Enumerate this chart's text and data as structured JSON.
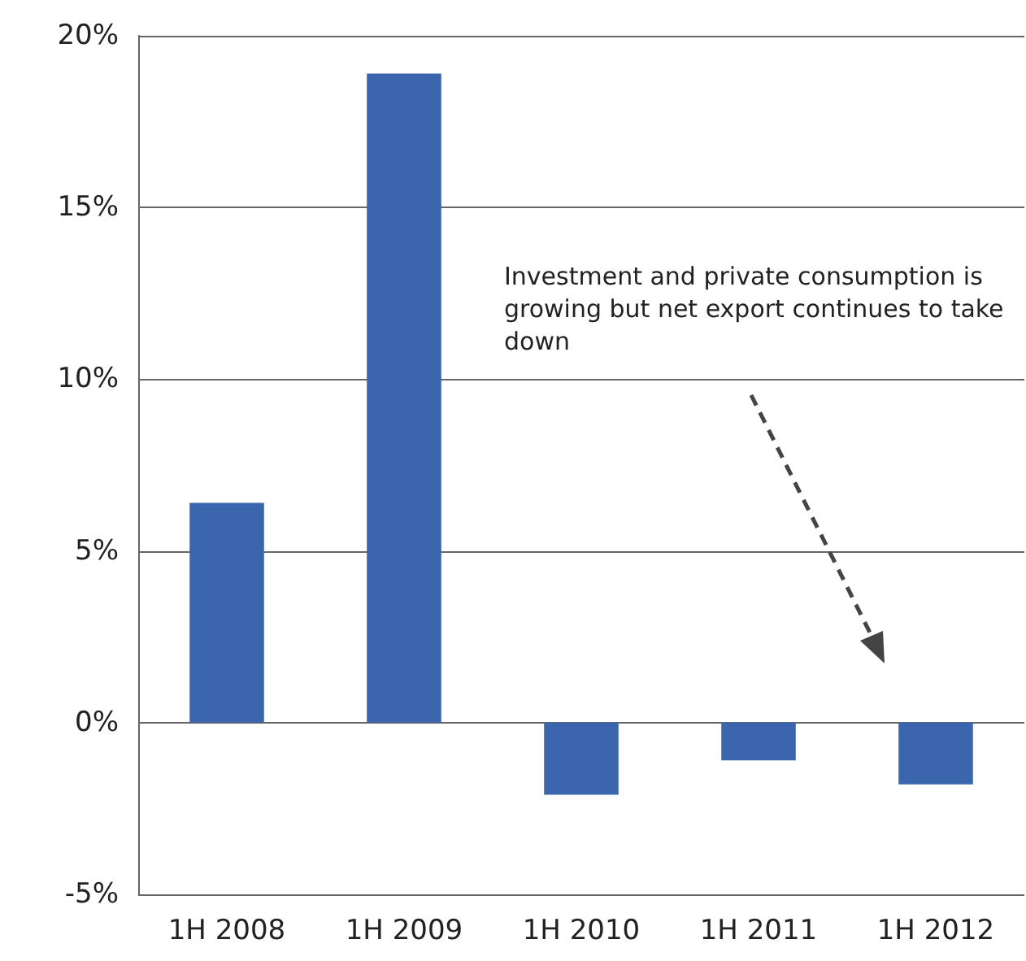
{
  "chart_data": {
    "type": "bar",
    "categories": [
      "1H 2008",
      "1H 2009",
      "1H 2010",
      "1H 2011",
      "1H 2012"
    ],
    "values": [
      6.4,
      18.9,
      -2.1,
      -1.1,
      -1.8
    ],
    "color": "#3b65ad",
    "ylim": [
      -5,
      20
    ],
    "yticks": [
      {
        "value": -5,
        "label": "-5%"
      },
      {
        "value": 0,
        "label": "0%"
      },
      {
        "value": 5,
        "label": "5%"
      },
      {
        "value": 10,
        "label": "10%"
      },
      {
        "value": 15,
        "label": "15%"
      },
      {
        "value": 20,
        "label": "20%"
      }
    ],
    "grid": "y",
    "annotations": [
      "Investment and private consumption is growing but net export continues to take down"
    ]
  }
}
